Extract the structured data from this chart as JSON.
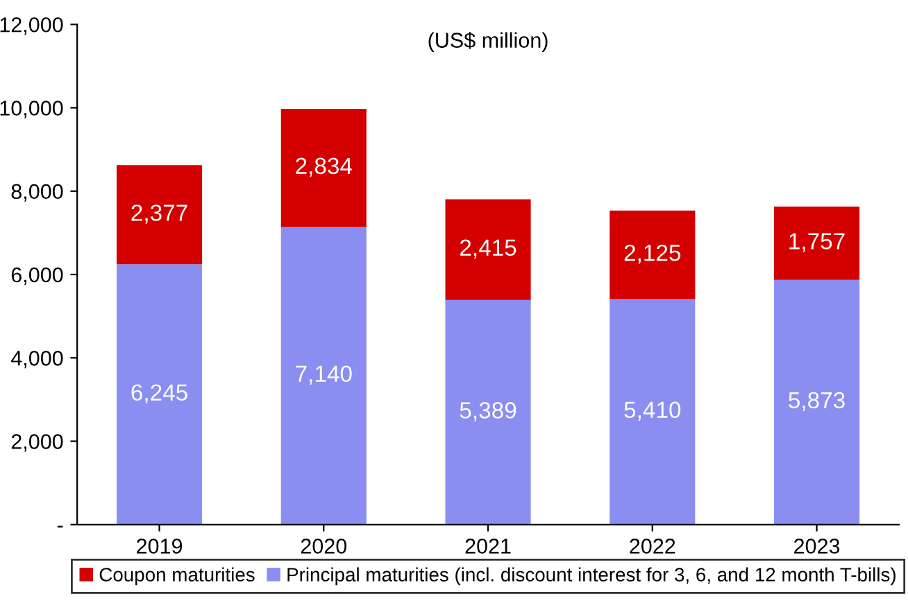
{
  "chart_data": {
    "type": "bar",
    "stacked": true,
    "subtitle": "(US$ million)",
    "categories": [
      "2019",
      "2020",
      "2021",
      "2022",
      "2023"
    ],
    "series": [
      {
        "name": "Principal maturities (incl. discount interest for 3, 6, and 12 month T-bills)",
        "color": "#8a8ef0",
        "values": [
          6245,
          7140,
          5389,
          5410,
          5873
        ],
        "value_labels": [
          "6,245",
          "7,140",
          "5,389",
          "5,410",
          "5,873"
        ]
      },
      {
        "name": "Coupon maturities",
        "color": "#d40000",
        "values": [
          2377,
          2834,
          2415,
          2125,
          1757
        ],
        "value_labels": [
          "2,377",
          "2,834",
          "2,415",
          "2,125",
          "1,757"
        ]
      }
    ],
    "ylim": [
      0,
      12000
    ],
    "yticks": [
      {
        "value": 0,
        "label": "-"
      },
      {
        "value": 2000,
        "label": "2,000"
      },
      {
        "value": 4000,
        "label": "4,000"
      },
      {
        "value": 6000,
        "label": "6,000"
      },
      {
        "value": 8000,
        "label": "8,000"
      },
      {
        "value": 10000,
        "label": "10,000"
      },
      {
        "value": 12000,
        "label": "12,000"
      }
    ],
    "grid": false,
    "legend": "bottom"
  }
}
